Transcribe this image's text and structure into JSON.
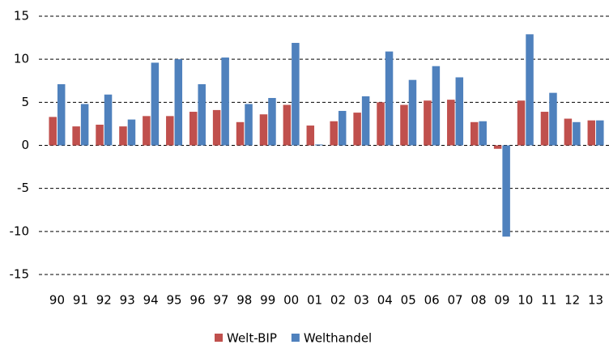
{
  "chart_data": {
    "type": "bar",
    "categories": [
      "90",
      "91",
      "92",
      "93",
      "94",
      "95",
      "96",
      "97",
      "98",
      "99",
      "00",
      "01",
      "02",
      "03",
      "04",
      "05",
      "06",
      "07",
      "08",
      "09",
      "10",
      "11",
      "12",
      "13"
    ],
    "series": [
      {
        "name": "Welt-BIP",
        "color": "#c0504d",
        "values": [
          3.3,
          2.2,
          2.4,
          2.2,
          3.4,
          3.4,
          3.9,
          4.1,
          2.7,
          3.6,
          4.7,
          2.3,
          2.8,
          3.8,
          5.0,
          4.7,
          5.2,
          5.3,
          2.7,
          -0.4,
          5.2,
          3.9,
          3.1,
          2.9
        ]
      },
      {
        "name": "Welthandel",
        "color": "#4f81bd",
        "values": [
          7.1,
          4.8,
          5.9,
          3.0,
          9.6,
          10.0,
          7.1,
          10.2,
          4.8,
          5.5,
          11.9,
          0.1,
          4.0,
          5.7,
          10.9,
          7.6,
          9.2,
          7.9,
          2.8,
          -10.6,
          12.9,
          6.1,
          2.7,
          2.9
        ]
      }
    ],
    "ylim": [
      -15,
      15
    ],
    "yticks": [
      -15,
      -10,
      -5,
      0,
      5,
      10,
      15
    ],
    "grid": true,
    "legend": "bottom"
  }
}
